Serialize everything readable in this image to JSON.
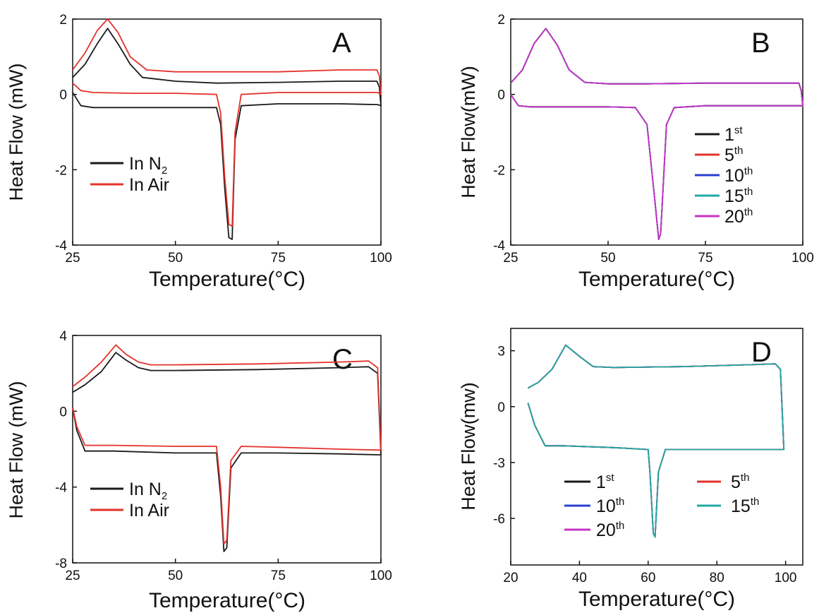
{
  "chart_data": [
    {
      "id": "A",
      "type": "line",
      "panel_label": "A",
      "xlabel": "Temperature(°C)",
      "ylabel": "Heat Flow (mW)",
      "xlim": [
        25,
        100
      ],
      "ylim": [
        -4,
        2
      ],
      "xticks": [
        25,
        50,
        75,
        100
      ],
      "yticks": [
        2,
        0,
        -2,
        -4
      ],
      "legend_position": "lower-left",
      "series": [
        {
          "name": "In N",
          "name_sub": "2",
          "color": "#1a1a1a",
          "x": [
            25,
            28,
            31,
            33.5,
            36,
            39,
            42,
            50,
            60,
            75,
            90,
            99,
            99.6,
            100,
            99.2,
            90,
            75,
            66,
            64.5,
            63.8,
            63,
            62,
            61,
            60,
            50,
            40,
            30,
            27,
            25
          ],
          "y": [
            0.45,
            0.8,
            1.35,
            1.75,
            1.35,
            0.8,
            0.45,
            0.35,
            0.3,
            0.32,
            0.35,
            0.35,
            0.2,
            -0.3,
            -0.27,
            -0.25,
            -0.25,
            -0.3,
            -1.2,
            -3.85,
            -3.8,
            -2.5,
            -0.8,
            -0.35,
            -0.35,
            -0.35,
            -0.35,
            -0.3,
            0.05
          ]
        },
        {
          "name": "In Air",
          "color": "#e3322b",
          "x": [
            25,
            28,
            31,
            33.5,
            36,
            39,
            43,
            50,
            60,
            75,
            90,
            99,
            99.6,
            100,
            99.2,
            90,
            75,
            66,
            64.5,
            63.8,
            63,
            62,
            61,
            60,
            50,
            40,
            30,
            27,
            25
          ],
          "y": [
            0.65,
            1.1,
            1.7,
            2.0,
            1.65,
            1.0,
            0.65,
            0.6,
            0.6,
            0.6,
            0.65,
            0.65,
            0.5,
            0.0,
            0.05,
            0.05,
            0.05,
            0.0,
            -1.0,
            -3.5,
            -3.45,
            -2.2,
            -0.5,
            0.0,
            0.03,
            0.03,
            0.05,
            0.1,
            0.3
          ]
        }
      ]
    },
    {
      "id": "B",
      "type": "line",
      "panel_label": "B",
      "xlabel": "Temperature(°C)",
      "ylabel": "Heat Flow(mW)",
      "xlim": [
        25,
        100
      ],
      "ylim": [
        -4,
        2
      ],
      "xticks": [
        25,
        50,
        75,
        100
      ],
      "yticks": [
        2,
        0,
        -2,
        -4
      ],
      "legend_position": "center-right",
      "series": [
        {
          "name": "1",
          "sup": "st",
          "color": "#1a1a1a"
        },
        {
          "name": "5",
          "sup": "th",
          "color": "#e3322b"
        },
        {
          "name": "10",
          "sup": "th",
          "color": "#2b3fd1"
        },
        {
          "name": "15",
          "sup": "th",
          "color": "#1fa9a4"
        },
        {
          "name": "20",
          "sup": "th",
          "color": "#c633c4"
        }
      ],
      "shared_curve": {
        "x": [
          25,
          28,
          31,
          34,
          37,
          40,
          44,
          50,
          60,
          75,
          90,
          99,
          99.6,
          100,
          99.2,
          90,
          75,
          67,
          65,
          63.5,
          63,
          62,
          60,
          57,
          50,
          40,
          30,
          27,
          25
        ],
        "y": [
          0.3,
          0.65,
          1.35,
          1.75,
          1.3,
          0.65,
          0.32,
          0.28,
          0.28,
          0.3,
          0.3,
          0.3,
          0.1,
          -0.3,
          -0.3,
          -0.3,
          -0.3,
          -0.35,
          -0.8,
          -3.7,
          -3.85,
          -2.8,
          -0.8,
          -0.35,
          -0.33,
          -0.33,
          -0.33,
          -0.3,
          0.0
        ]
      }
    },
    {
      "id": "C",
      "type": "line",
      "panel_label": "C",
      "xlabel": "Temperature(°C)",
      "ylabel": "Heat Flow (mW)",
      "xlim": [
        25,
        100
      ],
      "ylim": [
        -8,
        4
      ],
      "xticks": [
        25,
        50,
        75,
        100
      ],
      "yticks": [
        4,
        0,
        -4,
        -8
      ],
      "legend_position": "lower-left",
      "series": [
        {
          "name": "In N",
          "name_sub": "2",
          "color": "#1a1a1a",
          "x": [
            25,
            28,
            32,
            35.5,
            38,
            41,
            44,
            50,
            70,
            90,
            97,
            99.2,
            100,
            99.5,
            90,
            75,
            66,
            63.5,
            62.5,
            61.8,
            61,
            60,
            50,
            35,
            28,
            26,
            25
          ],
          "y": [
            1.0,
            1.4,
            2.1,
            3.1,
            2.7,
            2.3,
            2.15,
            2.15,
            2.2,
            2.3,
            2.35,
            2.0,
            -2.3,
            -2.3,
            -2.25,
            -2.2,
            -2.2,
            -3.0,
            -7.2,
            -7.4,
            -4.5,
            -2.2,
            -2.2,
            -2.1,
            -2.1,
            -1.0,
            0.2
          ]
        },
        {
          "name": "In Air",
          "color": "#e3322b",
          "x": [
            25,
            28,
            32,
            35.5,
            38,
            41,
            44,
            50,
            70,
            90,
            97,
            99.2,
            100,
            99.5,
            90,
            75,
            66,
            63.5,
            62.5,
            61.8,
            61,
            60,
            50,
            35,
            28,
            26,
            25
          ],
          "y": [
            1.3,
            1.8,
            2.6,
            3.5,
            3.0,
            2.6,
            2.45,
            2.45,
            2.5,
            2.6,
            2.65,
            2.3,
            -2.05,
            -2.05,
            -2.0,
            -1.9,
            -1.85,
            -2.6,
            -6.8,
            -7.0,
            -4.0,
            -1.85,
            -1.85,
            -1.8,
            -1.8,
            -0.8,
            0.2
          ]
        }
      ]
    },
    {
      "id": "D",
      "type": "line",
      "panel_label": "D",
      "xlabel": "Temperature(°C)",
      "ylabel": "Heat Flow(mw)",
      "xlim": [
        20,
        105
      ],
      "ylim": [
        -8.5,
        4.2
      ],
      "xticks": [
        20,
        40,
        60,
        80,
        100
      ],
      "yticks": [
        3,
        0,
        -3,
        -6
      ],
      "legend_position": "lower-left",
      "series": [
        {
          "name": "1",
          "sup": "st",
          "color": "#1a1a1a"
        },
        {
          "name": "10",
          "sup": "th",
          "color": "#2b3fd1"
        },
        {
          "name": "20",
          "sup": "th",
          "color": "#c633c4"
        },
        {
          "name": "5",
          "sup": "th",
          "color": "#e3322b"
        },
        {
          "name": "15",
          "sup": "th",
          "color": "#1fa9a4"
        }
      ],
      "shared_curve": {
        "x": [
          25,
          28,
          32,
          36,
          40,
          44,
          50,
          70,
          90,
          97,
          98.5,
          99.5,
          99,
          90,
          75,
          65,
          63,
          62,
          61.5,
          60.5,
          60,
          50,
          35,
          30,
          27,
          25
        ],
        "y": [
          1.0,
          1.3,
          2.0,
          3.3,
          2.7,
          2.15,
          2.1,
          2.15,
          2.25,
          2.3,
          2.0,
          -2.3,
          -2.3,
          -2.3,
          -2.3,
          -2.3,
          -3.5,
          -7.0,
          -6.8,
          -3.5,
          -2.3,
          -2.2,
          -2.1,
          -2.1,
          -1.0,
          0.2
        ]
      }
    }
  ]
}
